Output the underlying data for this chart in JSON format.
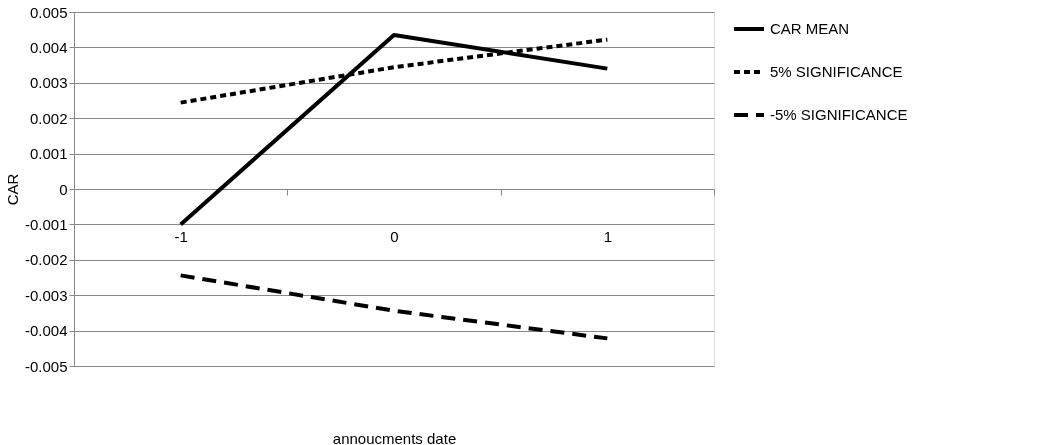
{
  "chart_data": {
    "type": "line",
    "xlabel": "annoucments date",
    "ylabel": "CAR",
    "categories": [
      "-1",
      "0",
      "1"
    ],
    "series": [
      {
        "name": "CAR MEAN",
        "color": "#000000",
        "line_style": "solid",
        "values": [
          -0.001,
          0.00435,
          0.0034
        ]
      },
      {
        "name": "5% SIGNIFICANCE",
        "color": "#000000",
        "line_style": "dotted",
        "values": [
          0.00244,
          0.00344,
          0.00422
        ]
      },
      {
        "name": "-5% SIGNIFICANCE",
        "color": "#000000",
        "line_style": "dashed",
        "values": [
          -0.00244,
          -0.00344,
          -0.00422
        ]
      }
    ],
    "ylim": [
      -0.005,
      0.005
    ],
    "yticks": [
      -0.005,
      -0.004,
      -0.003,
      -0.002,
      -0.001,
      0,
      0.001,
      0.002,
      0.003,
      0.004,
      0.005
    ],
    "grid": "y",
    "legend": "right",
    "marker": "none"
  }
}
